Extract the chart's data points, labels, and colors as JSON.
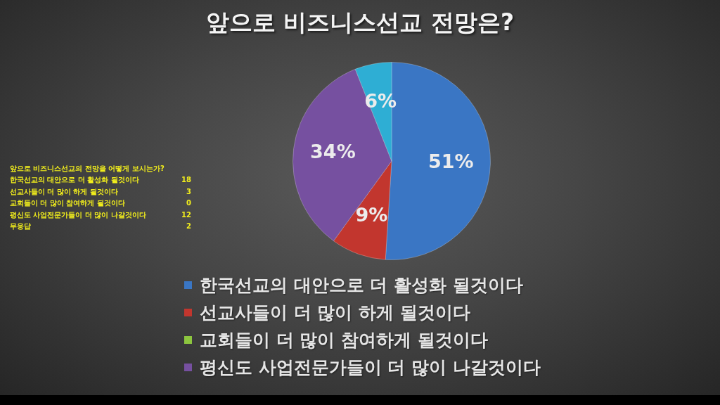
{
  "chart_data": [
    {
      "type": "pie",
      "title": "앞으로 비즈니스선교 전망은?",
      "categories": [
        "한국선교의 대안으로 더 활성화 될것이다",
        "선교사들이 더 많이 하게 될것이다",
        "교회들이 더 많이 참여하게 될것이다",
        "평신도 사업전문가들이 더 많이 나갈것이다",
        null
      ],
      "values": [
        51,
        9,
        0,
        34,
        6
      ],
      "value_labels": [
        "51%",
        "9%",
        null,
        "34%",
        "6%"
      ],
      "colors": [
        "#3a76c4",
        "#c2362e",
        "#8dc63f",
        "#7650a0",
        "#2eaed4"
      ],
      "legend": "bottom"
    },
    {
      "type": "other",
      "title": "앞으로 비즈니스선교의 전망을 어떻게 보시는가?",
      "categories": [
        "한국선교의 대안으로 더 활성화 될것이다",
        "선교사들이 더 많이 하게 될것이다",
        "교회들이 더 많이 참여하게 될것이다",
        "평신도 사업전문가들이 더 많이 나갈것이다",
        "무응답"
      ],
      "values": [
        18,
        3,
        0,
        12,
        2
      ],
      "data_labels": true
    }
  ]
}
